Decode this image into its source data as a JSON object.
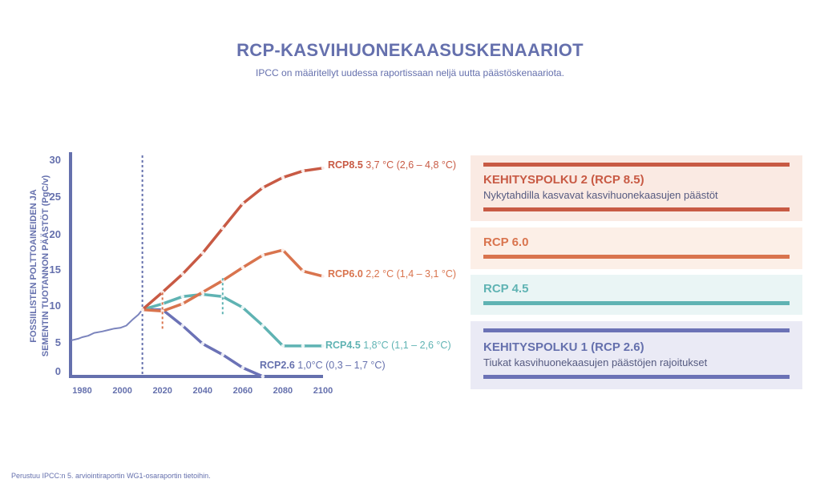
{
  "header": {
    "title": "RCP-KASVIHUONEKAASUSKENAARIOT",
    "subtitle": "IPCC on määritellyt uudessa raportissaan neljä uutta päästöskenaariota."
  },
  "footnote": "Perustuu IPCC:n 5. arviointiraportin WG1-osaraportin tietoihin.",
  "colors": {
    "axis": "#6570ad",
    "rcp85": "#c85a44",
    "rcp60": "#d9744e",
    "rcp45": "#5fb3b3",
    "rcp26": "#6b72b6",
    "historical": "#7b84bd"
  },
  "chart_data": {
    "type": "line",
    "xlim": [
      1975,
      2100
    ],
    "ylim": [
      0,
      30
    ],
    "x_ticks": [
      "1980",
      "2000",
      "2020",
      "2040",
      "2060",
      "2080",
      "2100"
    ],
    "y_ticks": [
      "0",
      "5",
      "10",
      "15",
      "20",
      "25",
      "30"
    ],
    "ylabel_lines": [
      "FOSSIILISTEN POLTTOAINEIDEN JA",
      "SEMENTIN TUOTANNON PÄÄSTÖT (PgC/v)"
    ],
    "reference_year": 2010,
    "series": [
      {
        "id": "historical",
        "x": [
          1975,
          1978,
          1980,
          1983,
          1986,
          1990,
          1993,
          1996,
          1999,
          2002,
          2005,
          2008,
          2010
        ],
        "y": [
          5.0,
          5.2,
          5.4,
          5.6,
          6.0,
          6.2,
          6.4,
          6.6,
          6.7,
          7.0,
          7.8,
          8.5,
          9.2
        ]
      },
      {
        "id": "rcp85",
        "name": "RCP8.5",
        "range_label": "3,7 °C (2,6 – 4,8 °C)",
        "x": [
          2010,
          2020,
          2030,
          2040,
          2050,
          2060,
          2070,
          2080,
          2090,
          2100
        ],
        "y": [
          9.2,
          11.6,
          14.1,
          17.0,
          20.4,
          23.8,
          26.0,
          27.4,
          28.3,
          28.7
        ]
      },
      {
        "id": "rcp60",
        "name": "RCP6.0",
        "range_label": "2,2 °C (1,4 – 3,1 °C)",
        "x": [
          2010,
          2020,
          2030,
          2040,
          2050,
          2060,
          2070,
          2080,
          2090,
          2100
        ],
        "y": [
          9.2,
          9.0,
          10.0,
          11.6,
          13.2,
          15.0,
          16.7,
          17.4,
          14.5,
          13.8
        ]
      },
      {
        "id": "rcp45",
        "name": "RCP4.5",
        "range_label": "1,8°C (1,1 – 2,6 °C)",
        "x": [
          2010,
          2020,
          2030,
          2040,
          2050,
          2060,
          2070,
          2080,
          2090,
          2100
        ],
        "y": [
          9.2,
          10.0,
          11.0,
          11.3,
          11.0,
          9.5,
          7.0,
          4.2,
          4.2,
          4.2
        ]
      },
      {
        "id": "rcp26",
        "name": "RCP2.6",
        "range_label": "1,0°C (0,3 – 1,7 °C)",
        "x": [
          2010,
          2020,
          2030,
          2040,
          2050,
          2060,
          2070
        ],
        "y": [
          9.2,
          9.2,
          7.0,
          4.5,
          3.0,
          1.2,
          0
        ]
      }
    ],
    "markers": [
      {
        "series": "rcp60",
        "x": 2020
      },
      {
        "series": "rcp45",
        "x": 2050
      }
    ]
  },
  "legend": [
    {
      "id": "rcp85",
      "title": "KEHITYSPOLKU 2 (RCP 8.5)",
      "description": "Nykytahdilla kasvavat kasvihuonekaasujen päästöt"
    },
    {
      "id": "rcp60",
      "title": "RCP 6.0",
      "description": ""
    },
    {
      "id": "rcp45",
      "title": "RCP 4.5",
      "description": ""
    },
    {
      "id": "rcp26",
      "title": "KEHITYSPOLKU 1 (RCP 2.6)",
      "description": "Tiukat kasvihuonekaasujen päästöjen rajoitukset"
    }
  ]
}
